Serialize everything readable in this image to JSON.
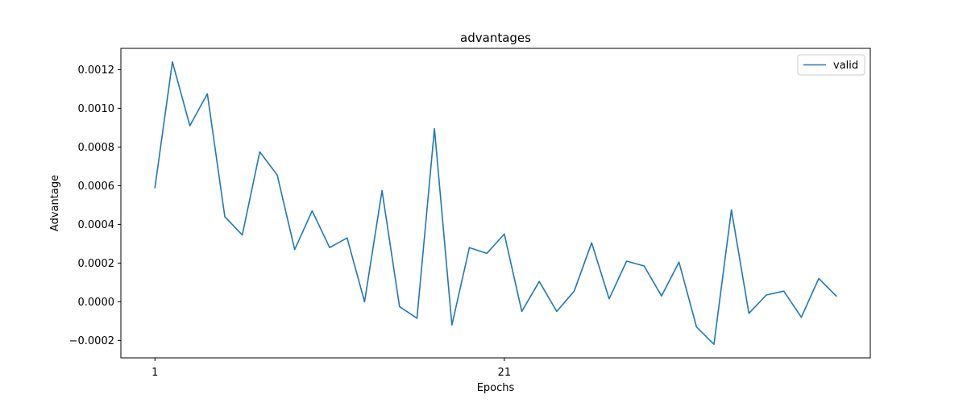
{
  "chart_data": {
    "type": "line",
    "title": "advantages",
    "xlabel": "Epochs",
    "ylabel": "Advantage",
    "x_ticks": [
      1,
      21
    ],
    "y_ticks": [
      -0.0002,
      0.0,
      0.0002,
      0.0004,
      0.0006,
      0.0008,
      0.001,
      0.0012
    ],
    "y_tick_labels": [
      "−0.0002",
      "0.0000",
      "0.0002",
      "0.0004",
      "0.0006",
      "0.0008",
      "0.0010",
      "0.0012"
    ],
    "xlim": [
      -0.95,
      41.95
    ],
    "ylim": [
      -0.00029,
      0.00131
    ],
    "grid": false,
    "legend_position": "top-right",
    "series": [
      {
        "name": "valid",
        "color": "#1f77b4",
        "x": [
          1,
          2,
          3,
          4,
          5,
          6,
          7,
          8,
          9,
          10,
          11,
          12,
          13,
          14,
          15,
          16,
          17,
          18,
          19,
          20,
          21,
          22,
          23,
          24,
          25,
          26,
          27,
          28,
          29,
          30,
          31,
          32,
          33,
          34,
          35,
          36,
          37,
          38,
          39,
          40
        ],
        "y": [
          0.00059,
          0.00124,
          0.00091,
          0.001075,
          0.00044,
          0.000345,
          0.000775,
          0.000655,
          0.00027,
          0.00047,
          0.00028,
          0.00033,
          0.0,
          0.000575,
          -2.5e-05,
          -8.5e-05,
          0.000895,
          -0.00012,
          0.00028,
          0.00025,
          0.00035,
          -5e-05,
          0.000105,
          -5e-05,
          5.5e-05,
          0.000305,
          1.5e-05,
          0.00021,
          0.000185,
          3e-05,
          0.000205,
          -0.00013,
          -0.00022,
          0.000475,
          -6e-05,
          3.5e-05,
          5.5e-05,
          -8e-05,
          0.00012,
          3e-05
        ]
      }
    ]
  }
}
